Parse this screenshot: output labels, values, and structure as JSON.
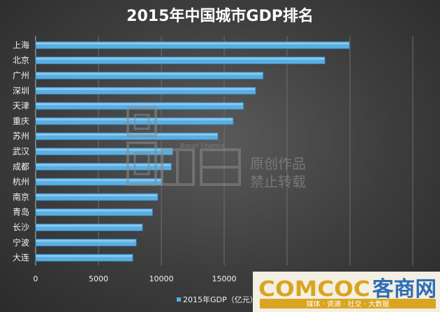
{
  "chart_data": {
    "type": "bar",
    "orientation": "horizontal",
    "title": "2015年中国城市GDP排名",
    "categories": [
      "上海",
      "北京",
      "广州",
      "深圳",
      "天津",
      "重庆",
      "苏州",
      "武汉",
      "成都",
      "杭州",
      "南京",
      "青岛",
      "长沙",
      "宁波",
      "大连"
    ],
    "series": [
      {
        "name": "2015年GDP（亿元）",
        "values": [
          24965,
          23015,
          18100,
          17503,
          16538,
          15720,
          14504,
          10906,
          10801,
          10054,
          9721,
          9300,
          8510,
          8012,
          7732
        ]
      }
    ],
    "xlim": [
      0,
      30000
    ],
    "xticks": [
      0,
      5000,
      10000,
      15000,
      20000,
      25000,
      30000
    ],
    "grid": true,
    "legend": "bottom",
    "bar_color": "#5aaee0"
  },
  "watermark": {
    "brand_en": "Bread Finance",
    "line1": "原创作品",
    "line2": "禁止转载"
  },
  "logo": {
    "name": "COMCOC客商网",
    "slogan": "媒体 · 资源 · 社交 · 大数据"
  }
}
